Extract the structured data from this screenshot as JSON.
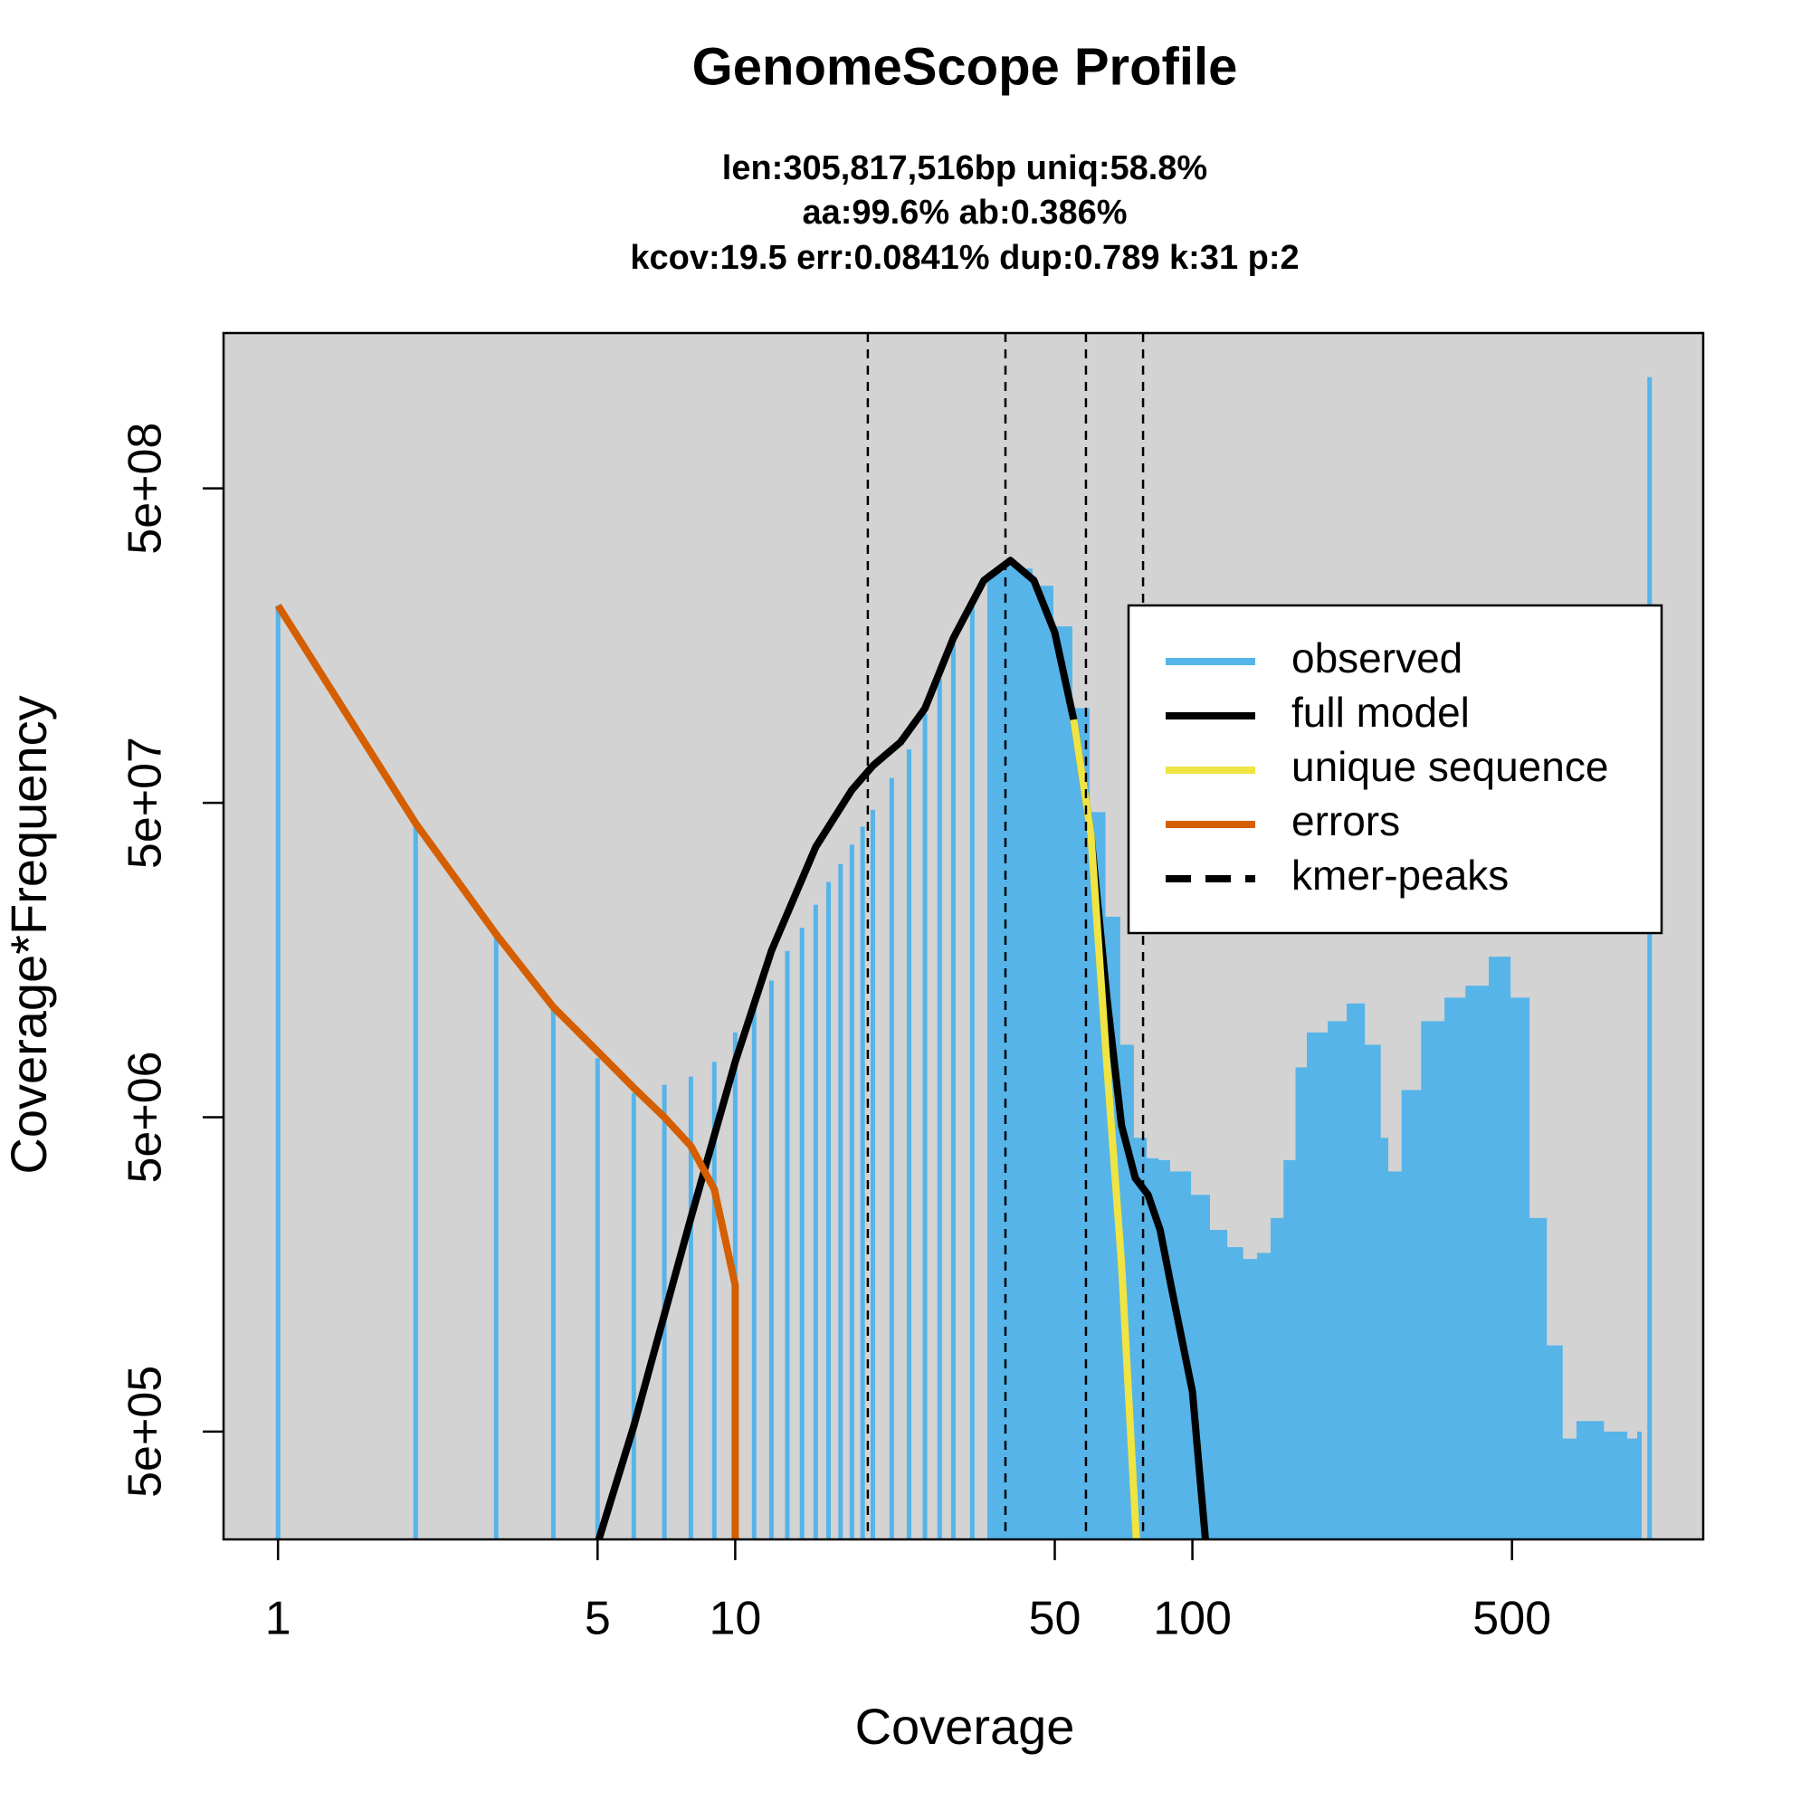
{
  "chart_data": {
    "type": "line",
    "title": "GenomeScope Profile",
    "subtitle": [
      "len:305,817,516bp uniq:58.8%",
      "aa:99.6% ab:0.386%",
      "kcov:19.5 err:0.0841%  dup:0.789  k:31 p:2"
    ],
    "x_label": "Coverage",
    "y_label": "Coverage*Frequency",
    "xlog": true,
    "ylog": true,
    "xlim": [
      0.76,
      1310
    ],
    "ylim": [
      227000,
      1560000000
    ],
    "xticks": [
      1,
      5,
      10,
      50,
      100,
      500
    ],
    "yticks": [
      {
        "value": 500000,
        "label": "5e+05"
      },
      {
        "value": 5000000,
        "label": "5e+06"
      },
      {
        "value": 50000000,
        "label": "5e+07"
      },
      {
        "value": 500000000,
        "label": "5e+08"
      }
    ],
    "background": "#d3d3d3",
    "legend": "topright",
    "series": [
      {
        "name": "observed",
        "color": "#56B4E9",
        "style": "bars",
        "x": [
          1,
          2,
          3,
          4,
          5,
          6,
          7,
          8,
          9,
          10,
          11,
          12,
          13,
          14,
          15,
          16,
          17,
          18,
          19,
          20,
          22,
          24,
          26,
          28,
          30,
          33,
          36,
          39,
          42,
          45,
          50,
          55,
          60,
          65,
          70,
          75,
          80,
          85,
          90,
          100,
          110,
          120,
          130,
          140,
          150,
          160,
          170,
          180,
          200,
          220,
          240,
          260,
          270,
          290,
          320,
          360,
          400,
          450,
          500,
          550,
          600,
          650,
          700,
          800,
          900,
          950,
          1000
        ],
        "values": [
          212000000,
          43000000,
          19100000,
          11000000,
          7700000,
          5970000,
          6340000,
          6730000,
          7500000,
          9300000,
          11000000,
          13600000,
          16900000,
          20000000,
          23700000,
          28000000,
          31900000,
          36800000,
          42000000,
          47500000,
          60000000,
          74000000,
          96000000,
          124000000,
          160000000,
          216000000,
          271000000,
          290000000,
          278000000,
          245000000,
          182000000,
          100000000,
          46700000,
          21700000,
          8500000,
          4300000,
          3700000,
          3650000,
          3360000,
          2830000,
          2190000,
          1930000,
          1770000,
          1850000,
          2390000,
          3650000,
          7200000,
          9300000,
          10100000,
          11500000,
          8500000,
          4300000,
          3360000,
          6100000,
          10100000,
          12000000,
          13100000,
          16200000,
          12000000,
          2390000,
          940000,
          475000,
          540000,
          500000,
          475000,
          500000,
          1130000000
        ]
      },
      {
        "name": "full model",
        "color": "#000000",
        "style": "line",
        "x": [
          5,
          6,
          8,
          10,
          12,
          15,
          18,
          20,
          23,
          26,
          30,
          35,
          40,
          45,
          50,
          55,
          60,
          65,
          70,
          75,
          80,
          85,
          90,
          100,
          107
        ],
        "values": [
          220000,
          520000,
          2390000,
          7500000,
          16900000,
          36200000,
          55000000,
          65600000,
          78000000,
          99700000,
          167000000,
          255000000,
          295000000,
          255000000,
          174000000,
          92000000,
          39500000,
          12000000,
          4700000,
          3200000,
          2830000,
          2190000,
          1430000,
          670000,
          220000
        ]
      },
      {
        "name": "unique sequence",
        "color": "#F0E442",
        "style": "line",
        "x": [
          55,
          60,
          65,
          70,
          75.5
        ],
        "values": [
          92000000,
          39500000,
          7300000,
          1700000,
          220000
        ]
      },
      {
        "name": "errors",
        "color": "#D55E00",
        "style": "line",
        "x": [
          1,
          2,
          3,
          4,
          5,
          6,
          7,
          8,
          9,
          10,
          10
        ],
        "values": [
          212000000,
          43000000,
          19100000,
          11200000,
          8100000,
          6200000,
          5000000,
          4050000,
          2950000,
          1460000,
          220000
        ]
      },
      {
        "name": "kmer-peaks",
        "color": "#000000",
        "style": "vline",
        "x": [
          19.5,
          39,
          58.5,
          78
        ]
      }
    ]
  }
}
